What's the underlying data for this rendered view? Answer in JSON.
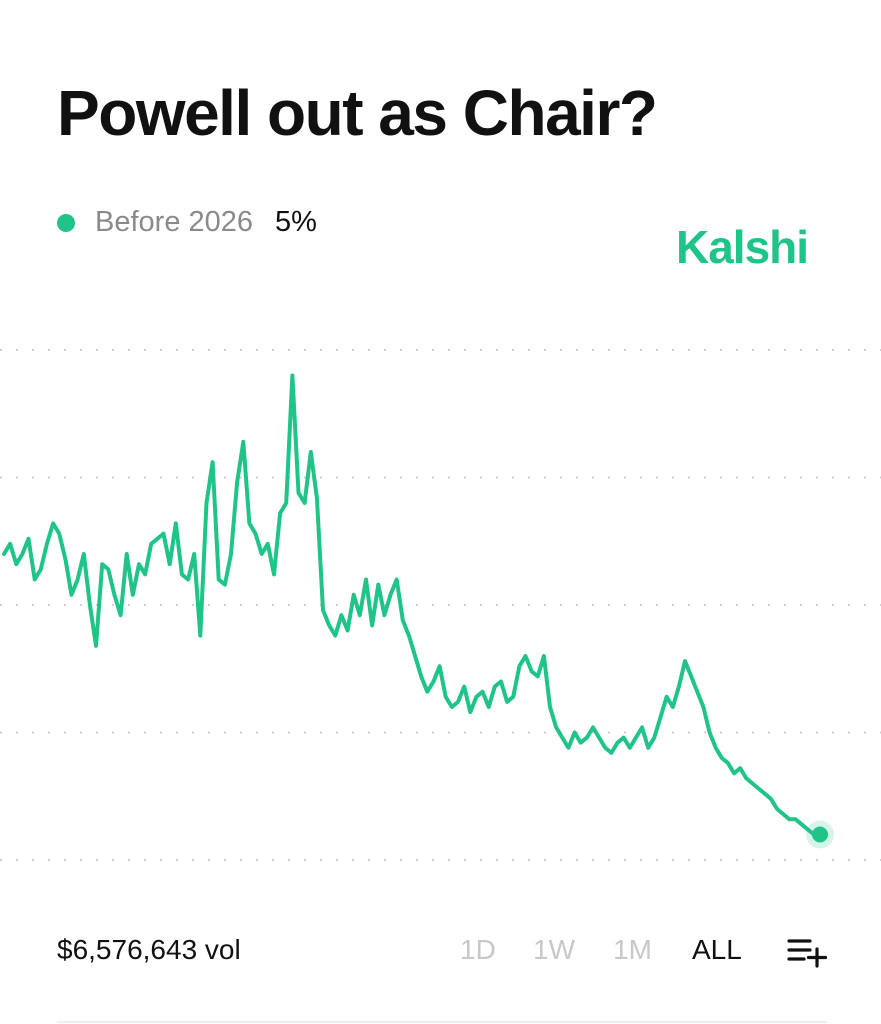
{
  "title": "Powell out as Chair?",
  "brand": "Kalshi",
  "colors": {
    "accent": "#20c489",
    "text": "#111111",
    "muted": "#8a8a8a",
    "grid": "#cfcfcf"
  },
  "legend": {
    "name": "Before 2026",
    "value": "5%"
  },
  "volume": "$6,576,643 vol",
  "ranges": [
    "1D",
    "1W",
    "1M",
    "ALL"
  ],
  "active_range": "ALL",
  "icons": {
    "add_to_list": "list-plus-icon"
  },
  "chart_data": {
    "type": "line",
    "title": "",
    "xlabel": "",
    "ylabel": "",
    "grid": true,
    "grid_lines": 5,
    "ylim": [
      0,
      100
    ],
    "series": [
      {
        "name": "Before 2026",
        "values": [
          60,
          62,
          58,
          60,
          63,
          55,
          57,
          62,
          66,
          64,
          59,
          52,
          55,
          60,
          50,
          42,
          58,
          57,
          52,
          48,
          60,
          52,
          58,
          56,
          62,
          63,
          64,
          58,
          66,
          56,
          55,
          60,
          44,
          70,
          78,
          55,
          54,
          60,
          74,
          82,
          66,
          64,
          60,
          62,
          56,
          68,
          70,
          95,
          72,
          70,
          80,
          71,
          49,
          46,
          44,
          48,
          45,
          52,
          48,
          55,
          46,
          54,
          48,
          52,
          55,
          47,
          44,
          40,
          36,
          33,
          35,
          38,
          32,
          30,
          31,
          34,
          29,
          32,
          33,
          30,
          34,
          35,
          31,
          32,
          38,
          40,
          37,
          36,
          40,
          30,
          26,
          24,
          22,
          25,
          23,
          24,
          26,
          24,
          22,
          21,
          23,
          24,
          22,
          24,
          26,
          22,
          24,
          28,
          32,
          30,
          34,
          39,
          36,
          33,
          30,
          25,
          22,
          20,
          19,
          17,
          18,
          16,
          15,
          14,
          13,
          12,
          10,
          9,
          8,
          8,
          7,
          6,
          5,
          5
        ]
      }
    ],
    "last_value": 5
  }
}
